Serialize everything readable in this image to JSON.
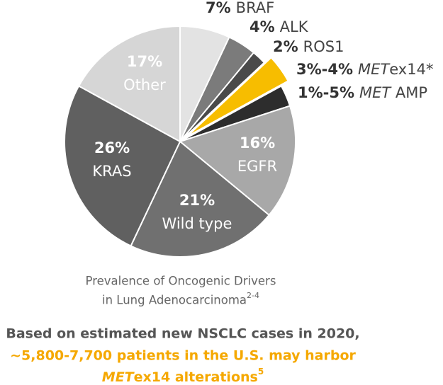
{
  "chart_data": {
    "type": "pie",
    "categories": [
      "BRAF",
      "ALK",
      "ROS1",
      "METex14*",
      "MET AMP",
      "EGFR",
      "Wild type",
      "KRAS",
      "Other"
    ],
    "values": [
      7,
      4,
      2,
      4,
      3,
      16,
      21,
      26,
      17
    ],
    "value_labels": [
      "7%",
      "4%",
      "2%",
      "3%-4%",
      "1%-5%",
      "16%",
      "21%",
      "26%",
      "17%"
    ],
    "colors": [
      "#e3e3e3",
      "#7b7b7b",
      "#4a4a4a",
      "#f7bd00",
      "#2d2d2d",
      "#a8a8a8",
      "#707070",
      "#606060",
      "#d6d6d6"
    ],
    "exploded": [
      "METex14*"
    ],
    "caption": [
      "Prevalence of Oncogenic Drivers",
      "in Lung Adenocarcinoma"
    ],
    "caption_superscript": "2-4"
  },
  "footer": {
    "lines": [
      "Based on estimated new NSCLC cases in 2020,",
      "~5,800-7,700 patients in the U.S. may harbor",
      "METex14 alterations"
    ],
    "superscript": "5"
  }
}
